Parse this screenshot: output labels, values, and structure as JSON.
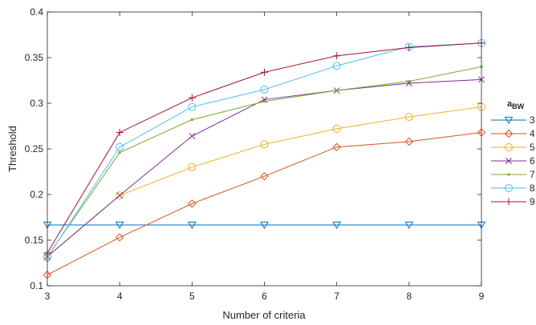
{
  "chart_data": {
    "type": "line",
    "x": [
      3,
      4,
      5,
      6,
      7,
      8,
      9
    ],
    "xlabel": "Number of criteria",
    "ylabel": "Threshold",
    "xlim": [
      3,
      9
    ],
    "ylim": [
      0.1,
      0.4
    ],
    "xticks": [
      3,
      4,
      5,
      6,
      7,
      8,
      9
    ],
    "yticks": [
      0.1,
      0.15,
      0.2,
      0.25,
      0.3,
      0.35,
      0.4
    ],
    "ytick_labels": [
      "0.1",
      "0.15",
      "0.2",
      "0.25",
      "0.3",
      "0.35",
      "0.4"
    ],
    "grid": false,
    "legend": {
      "title": "a",
      "title_sub": "BW",
      "position": "right"
    },
    "series": [
      {
        "name": "3",
        "color": "#0072BD",
        "marker": "triangle-down",
        "values": [
          0.1667,
          0.1667,
          0.1667,
          0.1667,
          0.1667,
          0.1667,
          0.1667
        ]
      },
      {
        "name": "4",
        "color": "#D95319",
        "marker": "diamond",
        "values": [
          0.112,
          0.153,
          0.19,
          0.22,
          0.252,
          0.258,
          0.268
        ]
      },
      {
        "name": "5",
        "color": "#EDB120",
        "marker": "circle",
        "values": [
          0.132,
          0.199,
          0.23,
          0.255,
          0.272,
          0.285,
          0.296
        ]
      },
      {
        "name": "6",
        "color": "#7E2F8E",
        "marker": "x",
        "values": [
          0.132,
          0.199,
          0.264,
          0.304,
          0.314,
          0.322,
          0.326
        ]
      },
      {
        "name": "7",
        "color": "#77AC30",
        "marker": "dot",
        "values": [
          0.132,
          0.246,
          0.282,
          0.302,
          0.314,
          0.324,
          0.34
        ]
      },
      {
        "name": "8",
        "color": "#4DBEEE",
        "marker": "circle",
        "values": [
          0.131,
          0.252,
          0.296,
          0.315,
          0.341,
          0.362,
          0.366
        ]
      },
      {
        "name": "9",
        "color": "#A2142F",
        "marker": "plus",
        "values": [
          0.136,
          0.268,
          0.306,
          0.334,
          0.352,
          0.361,
          0.366
        ]
      }
    ]
  }
}
